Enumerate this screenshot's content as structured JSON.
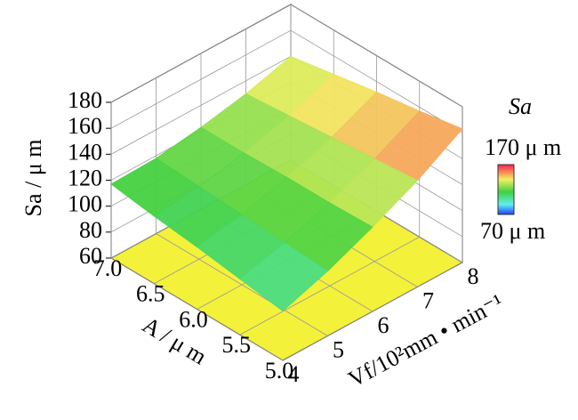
{
  "chart_data": {
    "type": "surface",
    "zlabel": "Sa / μ m",
    "xlabel": "A / μ m",
    "ylabel": "Vf/10²mm • min⁻¹",
    "x": [
      5,
      5.5,
      6,
      6.5,
      7
    ],
    "y": [
      4,
      5,
      6,
      7,
      8
    ],
    "z": [
      [
        98,
        110,
        125,
        142,
        163
      ],
      [
        103,
        112,
        124,
        139,
        157
      ],
      [
        108,
        114,
        124,
        136,
        152
      ],
      [
        112,
        116,
        123,
        133,
        146
      ],
      [
        117,
        118,
        123,
        130,
        140
      ]
    ],
    "xlim": [
      5,
      7
    ],
    "xticks": [
      {
        "value": 5,
        "label": "5.0"
      },
      {
        "value": 5.5,
        "label": "5.5"
      },
      {
        "value": 6,
        "label": "6.0"
      },
      {
        "value": 6.5,
        "label": "6.5"
      },
      {
        "value": 7,
        "label": "7.0"
      }
    ],
    "ylim": [
      4,
      8
    ],
    "yticks": [
      4,
      5,
      6,
      7,
      8
    ],
    "zlim": [
      60,
      180
    ],
    "zticks": [
      60,
      80,
      100,
      120,
      140,
      160,
      180
    ],
    "floor_color": "#f4f13a",
    "colorbar": {
      "title": "Sa",
      "range": [
        70,
        170
      ],
      "max_label": "170 μ m",
      "min_label": "70 μ m"
    }
  }
}
